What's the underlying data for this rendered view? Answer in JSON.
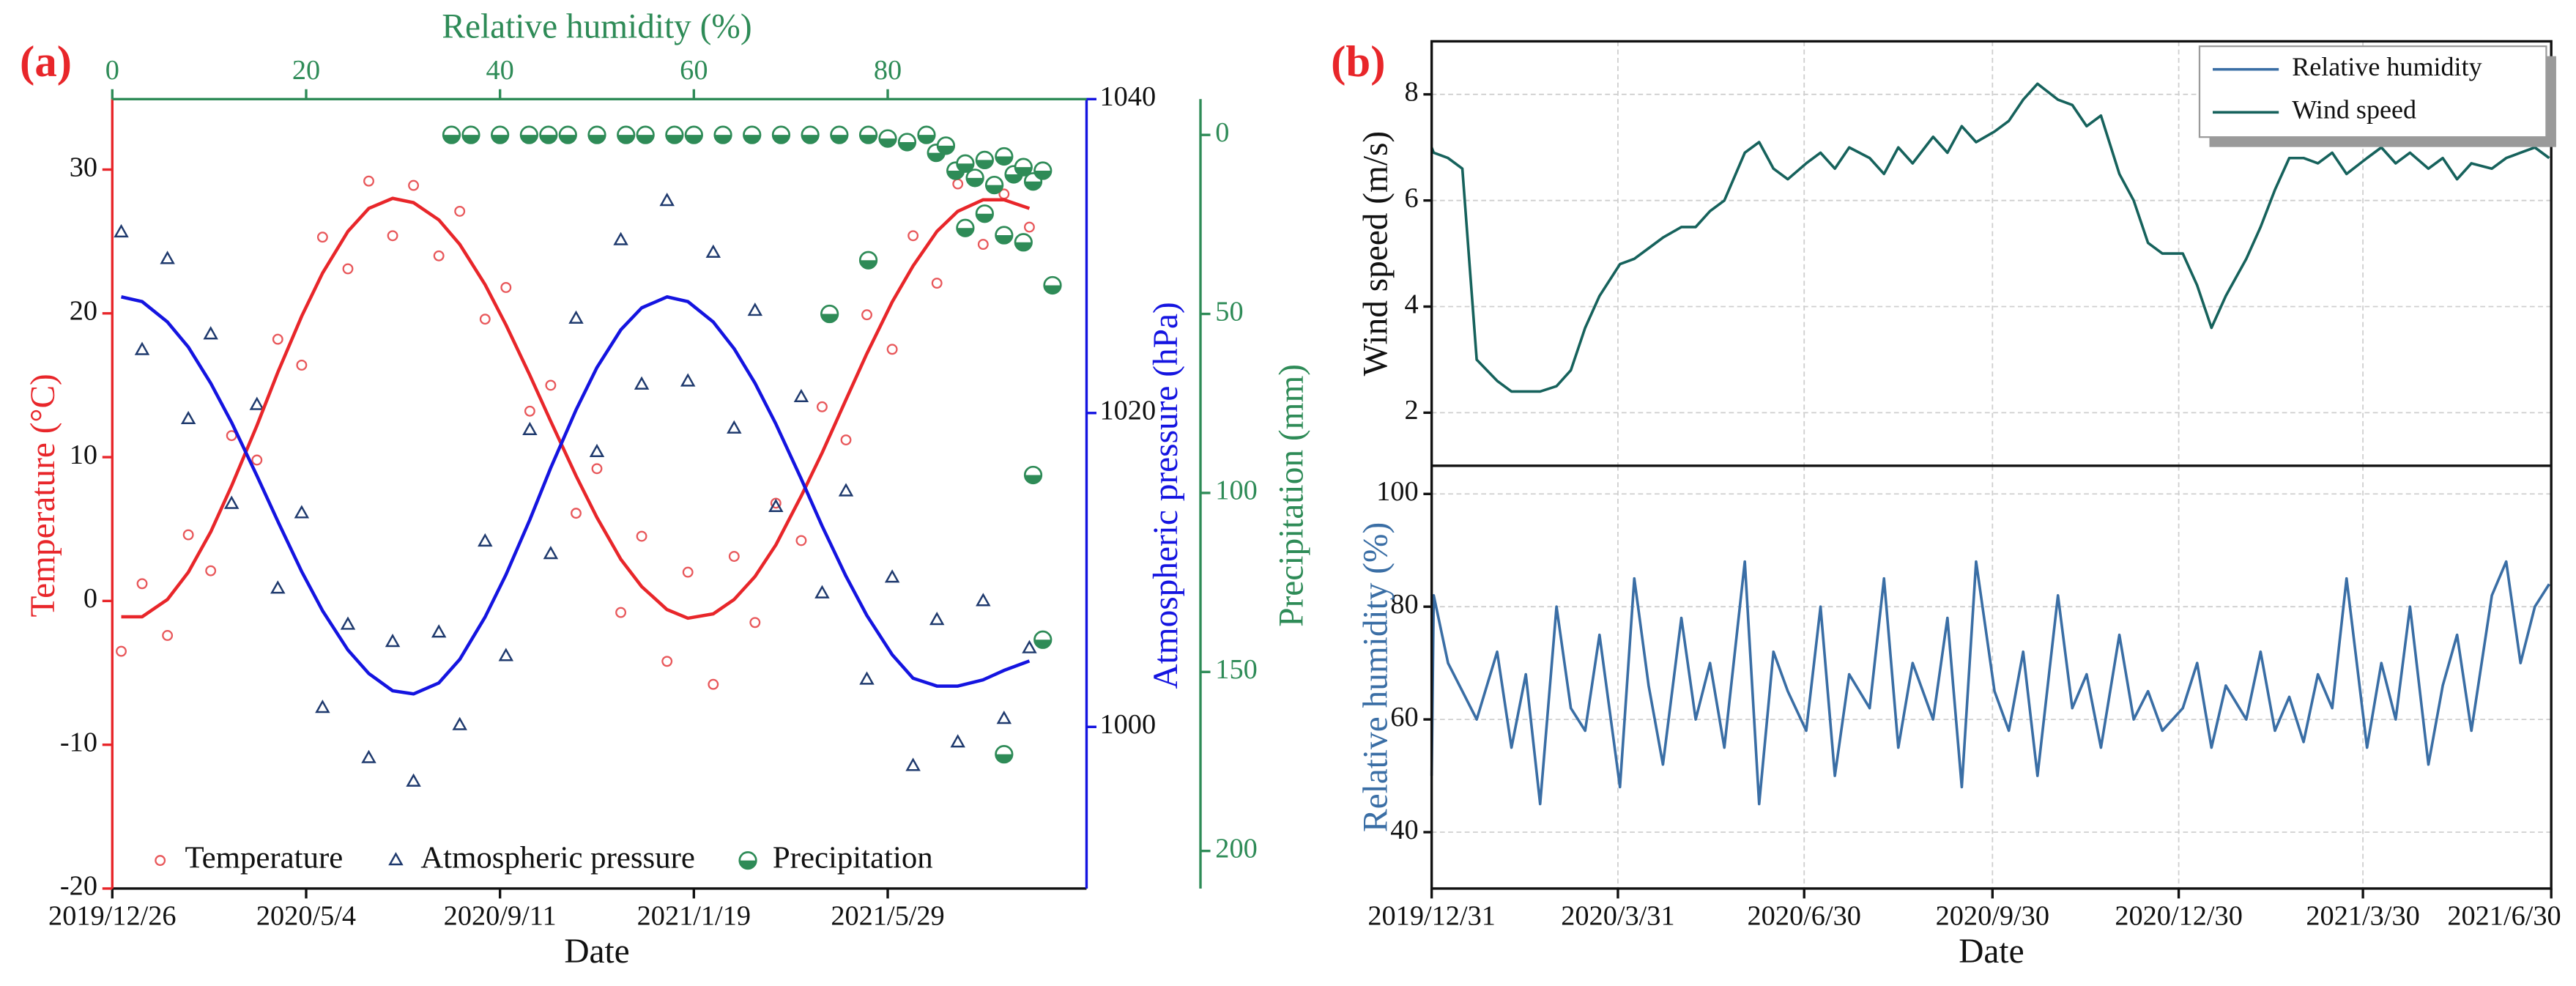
{
  "chart_data": [
    {
      "label": "(a)",
      "type": "scatter",
      "x": [
        "2020/1/1",
        "2020/1/15",
        "2020/2/1",
        "2020/2/15",
        "2020/3/1",
        "2020/3/15",
        "2020/4/1",
        "2020/4/15",
        "2020/5/1",
        "2020/5/15",
        "2020/6/1",
        "2020/6/15",
        "2020/7/1",
        "2020/7/15",
        "2020/8/1",
        "2020/8/15",
        "2020/9/1",
        "2020/9/15",
        "2020/10/1",
        "2020/10/15",
        "2020/11/1",
        "2020/11/15",
        "2020/12/1",
        "2020/12/15",
        "2021/1/1",
        "2021/1/15",
        "2021/2/1",
        "2021/2/15",
        "2021/3/1",
        "2021/3/15",
        "2021/4/1",
        "2021/4/15",
        "2021/5/1",
        "2021/5/15",
        "2021/6/1",
        "2021/6/15",
        "2021/7/1",
        "2021/7/15",
        "2021/8/1",
        "2021/8/15",
        "2021/9/1"
      ],
      "xlim": [
        "2019/12/26",
        "2021/10/6"
      ],
      "xticks": [
        "2019/12/26",
        "2020/5/4",
        "2020/9/11",
        "2021/1/19",
        "2021/5/29"
      ],
      "xlabel": "Date",
      "ylabel": "Temperature (°C)",
      "ylim": [
        -20,
        34.9
      ],
      "yticks": [
        -20,
        -10,
        0,
        10,
        20,
        30
      ],
      "y2label": "Atmospheric pressure (hPa)",
      "y2lim": [
        989.7,
        1040
      ],
      "y2ticks": [
        1000,
        1020,
        1040
      ],
      "grid": false,
      "legend": "bottom",
      "series": [
        {
          "name": "Temperature",
          "color": "#e8575a",
          "marker": "circle",
          "values": [
            -3.5,
            1.2,
            -2.4,
            4.6,
            2.1,
            11.5,
            9.8,
            18.2,
            16.4,
            25.3,
            23.1,
            29.2,
            25.4,
            28.9,
            24.0,
            27.1,
            19.6,
            21.8,
            13.2,
            15.0,
            6.1,
            9.2,
            -0.8,
            4.5,
            -4.2,
            2.0,
            -5.8,
            3.1,
            -1.5,
            6.8,
            4.2,
            13.5,
            11.2,
            19.9,
            17.5,
            25.4,
            22.1,
            29.0,
            24.8,
            28.3,
            26.0
          ]
        },
        {
          "name": "Atmospheric pressure",
          "color": "#1f3a6e",
          "marker": "triangle",
          "axis": "y2",
          "values": [
            1031.5,
            1024.0,
            1029.8,
            1019.6,
            1025.0,
            1014.2,
            1020.5,
            1008.8,
            1013.6,
            1001.2,
            1006.5,
            998.0,
            1005.4,
            996.5,
            1006.0,
            1000.1,
            1011.8,
            1004.5,
            1018.9,
            1011.0,
            1026.0,
            1017.5,
            1031.0,
            1021.8,
            1033.5,
            1022.0,
            1030.2,
            1019.0,
            1026.5,
            1014.0,
            1021.0,
            1008.5,
            1015.0,
            1003.0,
            1009.5,
            997.5,
            1006.8,
            999.0,
            1008.0,
            1000.5,
            1005.0
          ]
        },
        {
          "type": "line",
          "color": "#e8262a",
          "values": [
            -1.1,
            -1.1,
            0.1,
            2.0,
            4.8,
            8.0,
            12.2,
            15.9,
            19.8,
            22.8,
            25.7,
            27.3,
            28.0,
            27.7,
            26.5,
            24.8,
            22.0,
            19.2,
            15.7,
            12.5,
            8.7,
            5.8,
            2.9,
            1.0,
            -0.6,
            -1.2,
            -0.9,
            0.1,
            1.7,
            3.9,
            7.3,
            10.3,
            14.0,
            17.2,
            20.8,
            23.3,
            25.7,
            27.1,
            27.9,
            27.9,
            27.3
          ]
        },
        {
          "type": "line",
          "color": "#1414e0",
          "axis": "y2",
          "values": [
            1027.4,
            1027.1,
            1025.8,
            1024.2,
            1021.9,
            1019.4,
            1016.0,
            1013.1,
            1009.9,
            1007.4,
            1004.9,
            1003.4,
            1002.3,
            1002.1,
            1002.8,
            1004.3,
            1007.0,
            1009.7,
            1013.2,
            1016.5,
            1020.2,
            1022.9,
            1025.3,
            1026.7,
            1027.4,
            1027.1,
            1025.8,
            1024.1,
            1021.9,
            1019.3,
            1015.8,
            1012.8,
            1009.6,
            1007.1,
            1004.6,
            1003.1,
            1002.6,
            1002.6,
            1003.0,
            1003.6,
            1004.2
          ]
        }
      ]
    },
    {
      "type": "scatter",
      "x": [
        35,
        37,
        40,
        43,
        45,
        47,
        50,
        53,
        55,
        58,
        60,
        63,
        66,
        69,
        72,
        75,
        78,
        80,
        82,
        84,
        85,
        86,
        87,
        88,
        89,
        90,
        91,
        92,
        93,
        94,
        95,
        96,
        90,
        88,
        92,
        94,
        78,
        74,
        97,
        95,
        96,
        92
      ],
      "xlabel": "Relative humidity (%)",
      "xlim": [
        0,
        100
      ],
      "xticks": [
        0,
        20,
        40,
        60,
        80
      ],
      "ylabel": "Precipitation (mm)",
      "ylim": [
        210.5,
        -10
      ],
      "yticks": [
        0,
        50,
        100,
        150,
        200
      ],
      "series": [
        {
          "name": "Precipitation",
          "color": "#2e8b57",
          "marker": "half-circle",
          "values": [
            0,
            0,
            0,
            0,
            0,
            0,
            0,
            0,
            0,
            0,
            0,
            0,
            0,
            0,
            0,
            0,
            0,
            1,
            2,
            0,
            5,
            3,
            10,
            8,
            12,
            7,
            14,
            6,
            11,
            9,
            13,
            10,
            22,
            26,
            28,
            30,
            35,
            50,
            42,
            95,
            141,
            173
          ]
        }
      ]
    },
    {
      "label": "(b)",
      "type": "line",
      "x": [
        "2019/12/31",
        "2020/1/1",
        "2020/1/8",
        "2020/1/15",
        "2020/1/22",
        "2020/2/1",
        "2020/2/8",
        "2020/2/15",
        "2020/2/22",
        "2020/3/1",
        "2020/3/8",
        "2020/3/15",
        "2020/3/22",
        "2020/4/1",
        "2020/4/8",
        "2020/4/15",
        "2020/4/22",
        "2020/5/1",
        "2020/5/8",
        "2020/5/15",
        "2020/5/22",
        "2020/6/1",
        "2020/6/8",
        "2020/6/15",
        "2020/6/22",
        "2020/7/1",
        "2020/7/8",
        "2020/7/15",
        "2020/7/22",
        "2020/8/1",
        "2020/8/8",
        "2020/8/15",
        "2020/8/22",
        "2020/9/1",
        "2020/9/8",
        "2020/9/15",
        "2020/9/22",
        "2020/10/1",
        "2020/10/8",
        "2020/10/15",
        "2020/10/22",
        "2020/11/1",
        "2020/11/8",
        "2020/11/15",
        "2020/11/22",
        "2020/12/1",
        "2020/12/8",
        "2020/12/15",
        "2020/12/22",
        "2021/1/1",
        "2021/1/8",
        "2021/1/15",
        "2021/1/22",
        "2021/2/1",
        "2021/2/8",
        "2021/2/15",
        "2021/2/22",
        "2021/3/1",
        "2021/3/8",
        "2021/3/15",
        "2021/3/22",
        "2021/4/1",
        "2021/4/8",
        "2021/4/15",
        "2021/4/22",
        "2021/5/1",
        "2021/5/8",
        "2021/5/15",
        "2021/5/22",
        "2021/6/1",
        "2021/6/8",
        "2021/6/15",
        "2021/6/22",
        "2021/6/29"
      ],
      "xlim": [
        "2019/12/31",
        "2021/6/30"
      ],
      "xticks": [
        "2019/12/31",
        "2020/3/31",
        "2020/6/30",
        "2020/9/30",
        "2020/12/30",
        "2021/3/30",
        "2021/6/30"
      ],
      "ylabel": "Wind speed (m/s)",
      "ylim": [
        1,
        9
      ],
      "yticks": [
        2,
        4,
        6,
        8
      ],
      "grid": true,
      "legend": "top-right",
      "series": [
        {
          "name": "Wind speed",
          "color": "#16625c",
          "values": [
            7.0,
            6.9,
            6.8,
            6.6,
            3.0,
            2.6,
            2.4,
            2.4,
            2.4,
            2.5,
            2.8,
            3.6,
            4.2,
            4.8,
            4.9,
            5.1,
            5.3,
            5.5,
            5.5,
            5.8,
            6.0,
            6.9,
            7.1,
            6.6,
            6.4,
            6.7,
            6.9,
            6.6,
            7.0,
            6.8,
            6.5,
            7.0,
            6.7,
            7.2,
            6.9,
            7.4,
            7.1,
            7.3,
            7.5,
            7.9,
            8.2,
            7.9,
            7.8,
            7.4,
            7.6,
            6.5,
            6.0,
            5.2,
            5.0,
            5.0,
            4.4,
            3.6,
            4.2,
            4.9,
            5.5,
            6.2,
            6.8,
            6.8,
            6.7,
            6.9,
            6.5,
            6.8,
            7.0,
            6.7,
            6.9,
            6.6,
            6.8,
            6.4,
            6.7,
            6.6,
            6.8,
            6.9,
            7.0,
            6.8
          ]
        }
      ]
    },
    {
      "type": "line",
      "x": [
        "2019/12/31",
        "2020/1/1",
        "2020/1/8",
        "2020/1/15",
        "2020/1/22",
        "2020/2/1",
        "2020/2/8",
        "2020/2/15",
        "2020/2/22",
        "2020/3/1",
        "2020/3/8",
        "2020/3/15",
        "2020/3/22",
        "2020/4/1",
        "2020/4/8",
        "2020/4/15",
        "2020/4/22",
        "2020/5/1",
        "2020/5/8",
        "2020/5/15",
        "2020/5/22",
        "2020/6/1",
        "2020/6/8",
        "2020/6/15",
        "2020/6/22",
        "2020/7/1",
        "2020/7/8",
        "2020/7/15",
        "2020/7/22",
        "2020/8/1",
        "2020/8/8",
        "2020/8/15",
        "2020/8/22",
        "2020/9/1",
        "2020/9/8",
        "2020/9/15",
        "2020/9/22",
        "2020/10/1",
        "2020/10/8",
        "2020/10/15",
        "2020/10/22",
        "2020/11/1",
        "2020/11/8",
        "2020/11/15",
        "2020/11/22",
        "2020/12/1",
        "2020/12/8",
        "2020/12/15",
        "2020/12/22",
        "2021/1/1",
        "2021/1/8",
        "2021/1/15",
        "2021/1/22",
        "2021/2/1",
        "2021/2/8",
        "2021/2/15",
        "2021/2/22",
        "2021/3/1",
        "2021/3/8",
        "2021/3/15",
        "2021/3/22",
        "2021/4/1",
        "2021/4/8",
        "2021/4/15",
        "2021/4/22",
        "2021/5/1",
        "2021/5/8",
        "2021/5/15",
        "2021/5/22",
        "2021/6/1",
        "2021/6/8",
        "2021/6/15",
        "2021/6/22",
        "2021/6/29"
      ],
      "xlim": [
        "2019/12/31",
        "2021/6/30"
      ],
      "xticks": [
        "2019/12/31",
        "2020/3/31",
        "2020/6/30",
        "2020/9/30",
        "2020/12/30",
        "2021/3/30",
        "2021/6/30"
      ],
      "xlabel": "Date",
      "ylabel": "Relative humidity (%)",
      "ylim": [
        30,
        105
      ],
      "yticks": [
        40,
        60,
        80,
        100
      ],
      "grid": true,
      "series": [
        {
          "name": "Relative humidity",
          "color": "#3a6ea5",
          "values": [
            50,
            82,
            70,
            65,
            60,
            72,
            55,
            68,
            45,
            80,
            62,
            58,
            75,
            48,
            85,
            66,
            52,
            78,
            60,
            70,
            55,
            88,
            45,
            72,
            65,
            58,
            80,
            50,
            68,
            62,
            85,
            55,
            70,
            60,
            78,
            48,
            88,
            65,
            58,
            72,
            50,
            82,
            62,
            68,
            55,
            75,
            60,
            65,
            58,
            62,
            70,
            55,
            66,
            60,
            72,
            58,
            64,
            56,
            68,
            62,
            85,
            55,
            70,
            60,
            80,
            52,
            66,
            75,
            58,
            82,
            88,
            70,
            80,
            84
          ]
        }
      ]
    }
  ]
}
